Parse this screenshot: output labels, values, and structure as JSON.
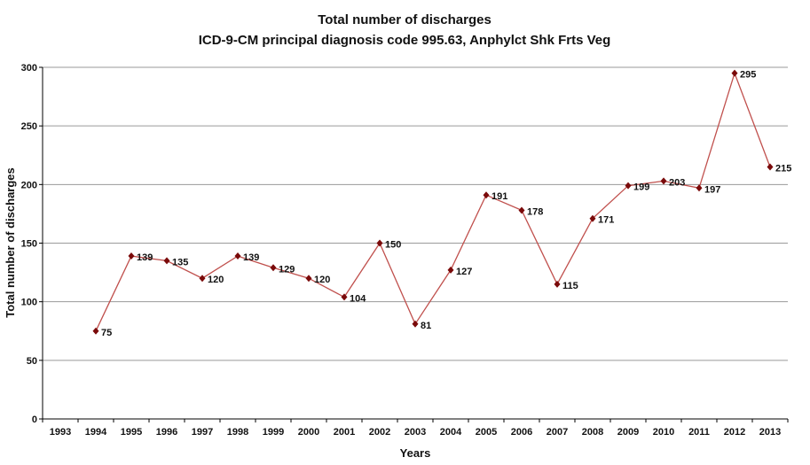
{
  "chart_data": {
    "type": "line",
    "title": "Total number of discharges",
    "subtitle": "ICD-9-CM principal diagnosis code 995.63, Anphylct Shk Frts Veg",
    "xlabel": "Years",
    "ylabel": "Total number of discharges",
    "categories": [
      "1993",
      "1994",
      "1995",
      "1996",
      "1997",
      "1998",
      "1999",
      "2000",
      "2001",
      "2002",
      "2003",
      "2004",
      "2005",
      "2006",
      "2007",
      "2008",
      "2009",
      "2010",
      "2011",
      "2012",
      "2013"
    ],
    "values": [
      null,
      75,
      139,
      135,
      120,
      139,
      129,
      120,
      104,
      150,
      81,
      127,
      191,
      178,
      115,
      171,
      199,
      203,
      197,
      295,
      215
    ],
    "yticks": [
      0,
      50,
      100,
      150,
      200,
      250,
      300
    ],
    "ylim": [
      0,
      300
    ],
    "grid": true,
    "colors": {
      "line": "#c0504d",
      "marker": "#7a0a0a",
      "grid": "#9a9a9a",
      "axis": "#000000"
    }
  }
}
